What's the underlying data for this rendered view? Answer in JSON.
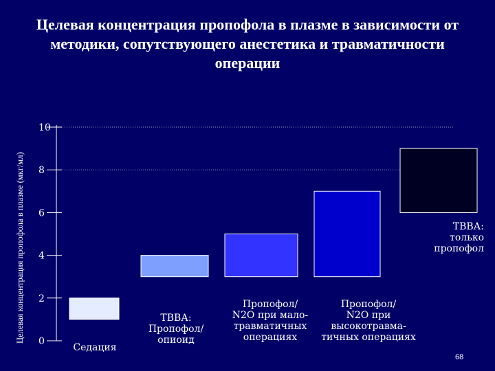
{
  "slide": {
    "title": "Целевая концентрация пропофола в плазме в зависимости от методики, сопутствующего анестетика и травматичности операции",
    "page_number": "68"
  },
  "chart_data": {
    "type": "bar",
    "title": "Целевая концентрация пропофола в плазме в зависимости от методики, сопутствующего анестетика и травматичности операции",
    "ylabel": "Целевая концентрация пропофола в плазме (мкг/мл)",
    "xlabel": "",
    "ylim": [
      0,
      10
    ],
    "yticks": [
      "0",
      "2",
      "4",
      "6",
      "8",
      "10"
    ],
    "grid": true,
    "categories": [
      "Седация",
      "ТВВА: Пропофол/ опиоид",
      "Пропофол/ N2O при мало- травматичных операциях",
      "Пропофол/ N2O при высокотравма- тичных операциях",
      "ТВВА: только пропофол"
    ],
    "category_lines": [
      [
        "Седация"
      ],
      [
        "ТВВА:",
        "Пропофол/",
        "опиоид"
      ],
      [
        "Пропофол/",
        "N2O  при мало-",
        "травматичных",
        "операциях"
      ],
      [
        "Пропофол/",
        "N2O  при",
        "высокотравма-",
        "тичных операциях"
      ],
      [
        "ТВВА:",
        "только",
        "пропофол"
      ]
    ],
    "ranges": [
      {
        "low": 1,
        "high": 2
      },
      {
        "low": 3,
        "high": 4
      },
      {
        "low": 3,
        "high": 5
      },
      {
        "low": 3,
        "high": 7
      },
      {
        "low": 6,
        "high": 9
      }
    ],
    "colors": [
      "#e6ecff",
      "#7f9fff",
      "#3333ff",
      "#0000cc",
      "#000022"
    ]
  }
}
